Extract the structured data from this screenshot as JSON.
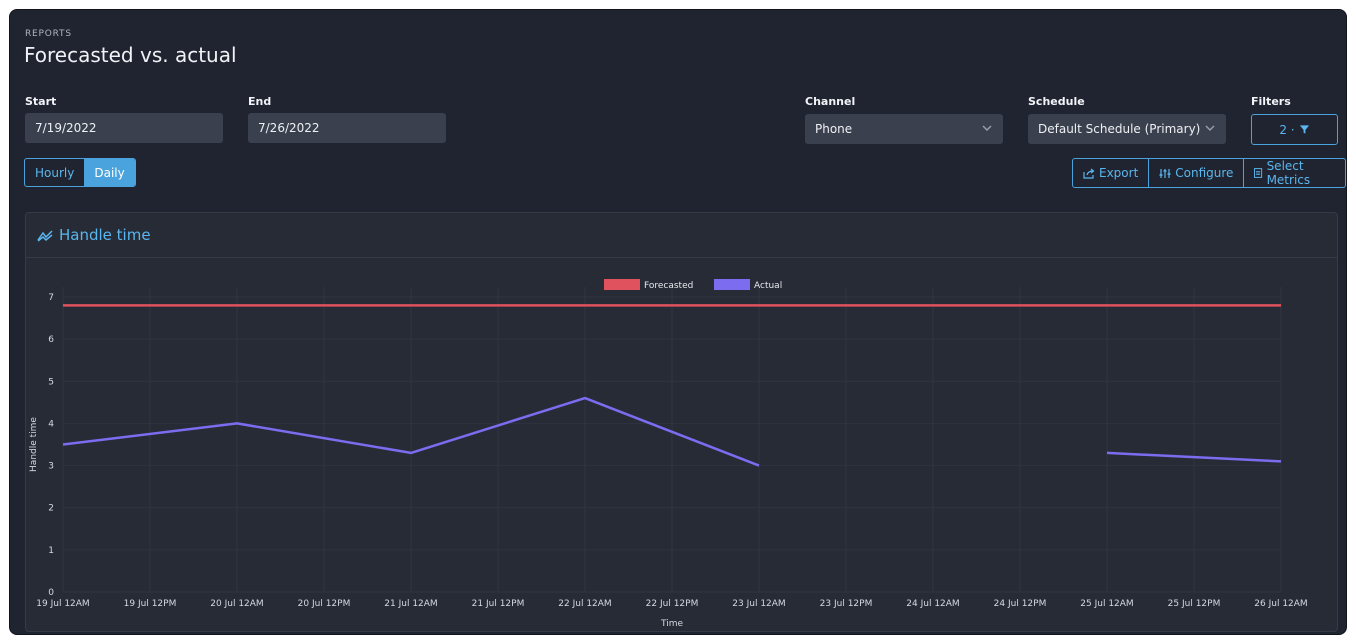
{
  "header": {
    "eyebrow": "REPORTS",
    "title": "Forecasted vs. actual"
  },
  "filters": {
    "start": {
      "label": "Start",
      "value": "7/19/2022"
    },
    "end": {
      "label": "End",
      "value": "7/26/2022"
    },
    "channel": {
      "label": "Channel",
      "value": "Phone"
    },
    "schedule": {
      "label": "Schedule",
      "value": "Default Schedule (Primary)"
    },
    "filters": {
      "label": "Filters",
      "value": "2 ·"
    }
  },
  "granularity": {
    "options": [
      "Hourly",
      "Daily"
    ],
    "selected": "Daily"
  },
  "actions": {
    "export": "Export",
    "configure": "Configure",
    "select_metrics": "Select Metrics"
  },
  "card": {
    "title": "Handle time"
  },
  "colors": {
    "accent": "#4aa3dc",
    "forecasted": "#e0525d",
    "actual": "#7b6cf0"
  },
  "chart_data": {
    "type": "line",
    "ylabel": "Handle time",
    "xlabel": "Time",
    "ylim": [
      0,
      7
    ],
    "yticks": [
      0,
      1,
      2,
      3,
      4,
      5,
      6,
      7
    ],
    "categories": [
      "19 Jul 12AM",
      "19 Jul 12PM",
      "20 Jul 12AM",
      "20 Jul 12PM",
      "21 Jul 12AM",
      "21 Jul 12PM",
      "22 Jul 12AM",
      "22 Jul 12PM",
      "23 Jul 12AM",
      "23 Jul 12PM",
      "24 Jul 12AM",
      "24 Jul 12PM",
      "25 Jul 12AM",
      "25 Jul 12PM",
      "26 Jul 12AM"
    ],
    "legend_position": "top-center",
    "grid": true,
    "series": [
      {
        "name": "Forecasted",
        "color": "#e0525d",
        "points": [
          [
            "19 Jul 12AM",
            6.8
          ],
          [
            "26 Jul 12AM",
            6.8
          ]
        ]
      },
      {
        "name": "Actual",
        "color": "#7b6cf0",
        "segments": [
          [
            [
              "19 Jul 12AM",
              3.5
            ],
            [
              "20 Jul 12AM",
              4.0
            ],
            [
              "21 Jul 12AM",
              3.3
            ],
            [
              "22 Jul 12AM",
              4.6
            ],
            [
              "23 Jul 12AM",
              3.0
            ]
          ],
          [
            [
              "25 Jul 12AM",
              3.3
            ],
            [
              "26 Jul 12AM",
              3.1
            ]
          ]
        ]
      }
    ]
  }
}
